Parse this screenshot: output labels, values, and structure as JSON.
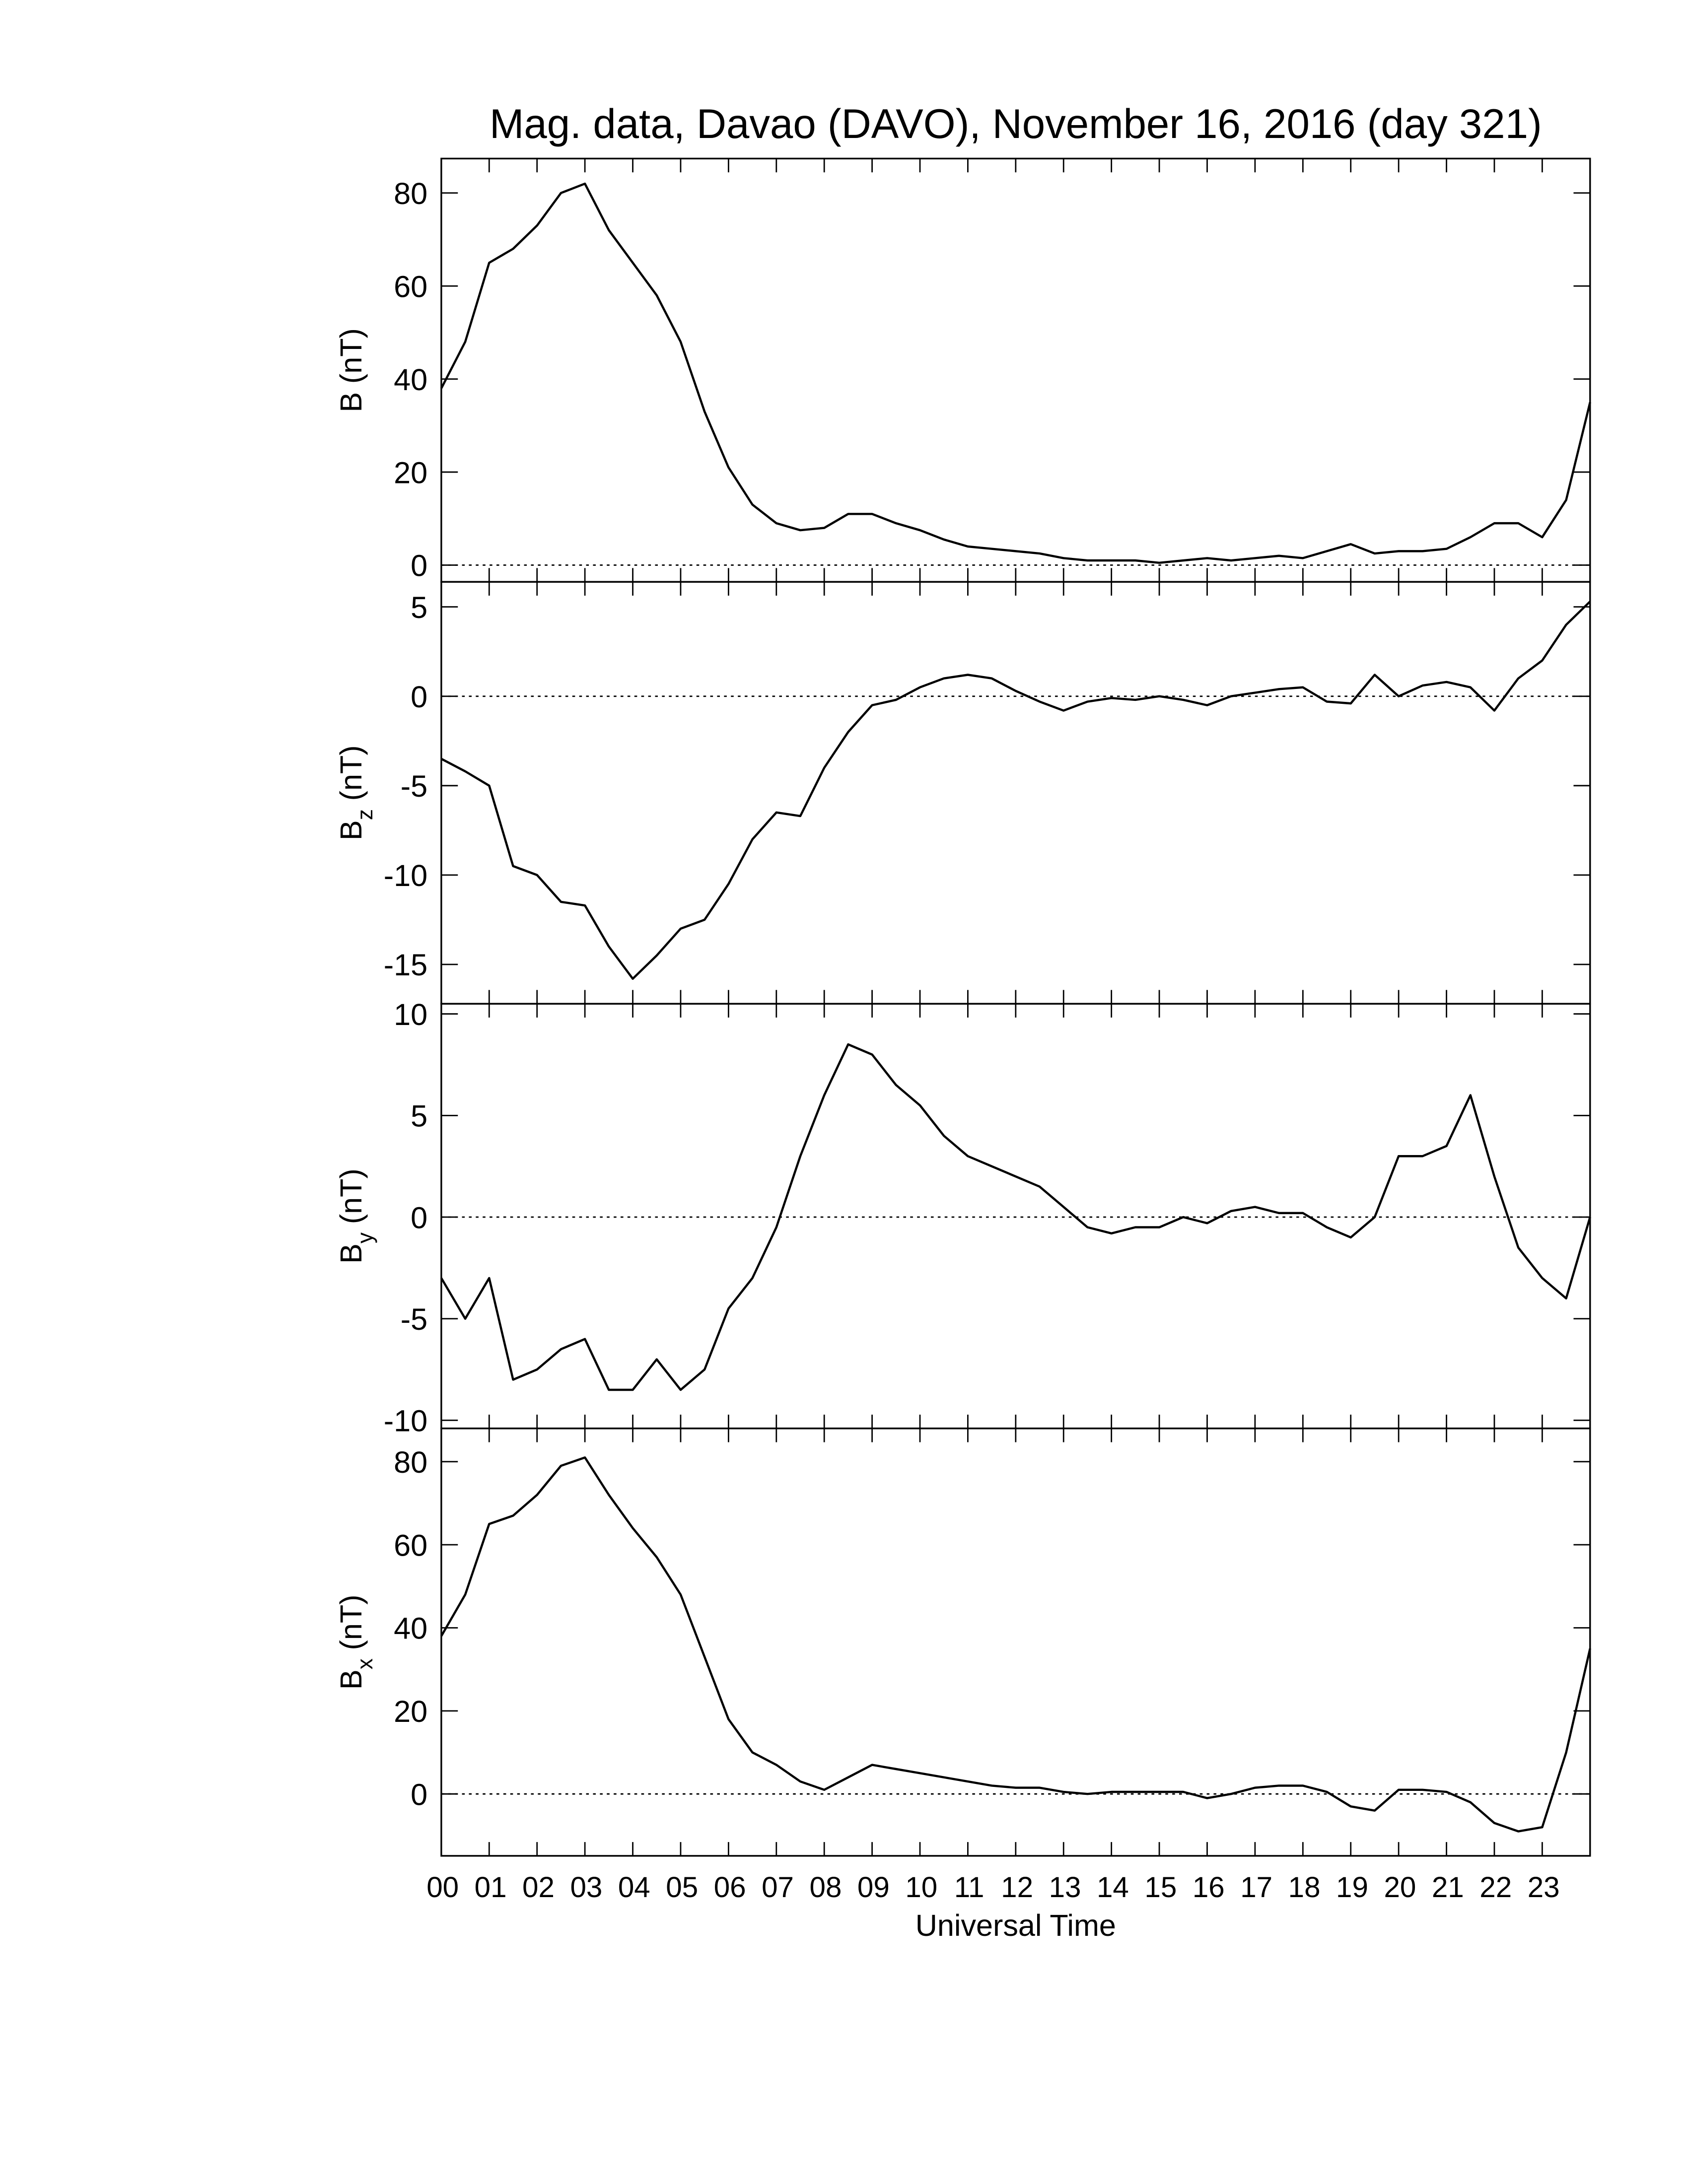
{
  "chart_data": [
    {
      "type": "line",
      "title": "Mag. data, Davao (DAVO), November 16, 2016 (day 321)",
      "ylabel": "B",
      "ylabel_unit": "(nT)",
      "x": [
        0,
        0.5,
        1,
        1.5,
        2,
        2.5,
        3,
        3.5,
        4,
        4.5,
        5,
        5.5,
        6,
        6.5,
        7,
        7.5,
        8,
        8.5,
        9,
        9.5,
        10,
        10.5,
        11,
        11.5,
        12,
        12.5,
        13,
        13.5,
        14,
        14.5,
        15,
        15.5,
        16,
        16.5,
        17,
        17.5,
        18,
        18.5,
        19,
        19.5,
        20,
        20.5,
        21,
        21.5,
        22,
        22.5,
        23,
        23.5,
        24
      ],
      "series": [
        {
          "color": "#000000",
          "values": [
            38,
            48,
            65,
            68,
            73,
            80,
            82,
            72,
            65,
            58,
            48,
            33,
            21,
            13,
            9,
            7.5,
            8,
            11,
            11,
            9,
            7.5,
            5.5,
            4,
            3.5,
            3,
            2.5,
            1.5,
            1,
            1,
            1,
            0.5,
            1,
            1.5,
            1,
            1.5,
            2,
            1.5,
            3,
            4.5,
            2.5,
            3,
            3,
            3.5,
            6,
            9,
            9,
            6,
            14,
            35
          ]
        }
      ],
      "xlim": [
        0,
        24
      ],
      "xticks": [
        0,
        1,
        2,
        3,
        4,
        5,
        6,
        7,
        8,
        9,
        10,
        11,
        12,
        13,
        14,
        15,
        16,
        17,
        18,
        19,
        20,
        21,
        22,
        23
      ],
      "ylim": [
        -3.6,
        87.4
      ],
      "yticks": [
        0,
        20,
        40,
        60,
        80
      ],
      "zero_line": true
    },
    {
      "type": "line",
      "ylabel": "B",
      "ylabel_sub": "z",
      "ylabel_unit": "(nT)",
      "x": [
        0,
        0.5,
        1,
        1.5,
        2,
        2.5,
        3,
        3.5,
        4,
        4.5,
        5,
        5.5,
        6,
        6.5,
        7,
        7.5,
        8,
        8.5,
        9,
        9.5,
        10,
        10.5,
        11,
        11.5,
        12,
        12.5,
        13,
        13.5,
        14,
        14.5,
        15,
        15.5,
        16,
        16.5,
        17,
        17.5,
        18,
        18.5,
        19,
        19.5,
        20,
        20.5,
        21,
        21.5,
        22,
        22.5,
        23,
        23.5,
        24
      ],
      "series": [
        {
          "color": "#000000",
          "values": [
            -3.5,
            -4.2,
            -5,
            -9.5,
            -10,
            -11.5,
            -11.7,
            -14,
            -15.8,
            -14.5,
            -13,
            -12.5,
            -10.5,
            -8,
            -6.5,
            -6.7,
            -4,
            -2,
            -0.5,
            -0.2,
            0.5,
            1,
            1.2,
            1,
            0.3,
            -0.3,
            -0.8,
            -0.3,
            -0.1,
            -0.2,
            0,
            -0.2,
            -0.5,
            0,
            0.2,
            0.4,
            0.5,
            -0.3,
            -0.4,
            1.2,
            0,
            0.6,
            0.8,
            0.5,
            -0.8,
            1,
            2,
            4,
            5.3
          ]
        }
      ],
      "xlim": [
        0,
        24
      ],
      "xticks": [
        0,
        1,
        2,
        3,
        4,
        5,
        6,
        7,
        8,
        9,
        10,
        11,
        12,
        13,
        14,
        15,
        16,
        17,
        18,
        19,
        20,
        21,
        22,
        23
      ],
      "ylim": [
        -17.2,
        6.4
      ],
      "yticks": [
        -15,
        -10,
        -5,
        0,
        5
      ],
      "zero_line": true
    },
    {
      "type": "line",
      "ylabel": "B",
      "ylabel_sub": "y",
      "ylabel_unit": "(nT)",
      "x": [
        0,
        0.5,
        1,
        1.5,
        2,
        2.5,
        3,
        3.5,
        4,
        4.5,
        5,
        5.5,
        6,
        6.5,
        7,
        7.5,
        8,
        8.5,
        9,
        9.5,
        10,
        10.5,
        11,
        11.5,
        12,
        12.5,
        13,
        13.5,
        14,
        14.5,
        15,
        15.5,
        16,
        16.5,
        17,
        17.5,
        18,
        18.5,
        19,
        19.5,
        20,
        20.5,
        21,
        21.5,
        22,
        22.5,
        23,
        23.5,
        24
      ],
      "series": [
        {
          "color": "#000000",
          "values": [
            -3,
            -5,
            -3,
            -8,
            -7.5,
            -6.5,
            -6,
            -8.5,
            -8.5,
            -7,
            -8.5,
            -7.5,
            -4.5,
            -3,
            -0.5,
            3,
            6,
            8.5,
            8,
            6.5,
            5.5,
            4,
            3,
            2.5,
            2,
            1.5,
            0.5,
            -0.5,
            -0.8,
            -0.5,
            -0.5,
            0,
            -0.3,
            0.3,
            0.5,
            0.2,
            0.2,
            -0.5,
            -1,
            0,
            3,
            3,
            3.5,
            6,
            2,
            -1.5,
            -3,
            -4,
            0
          ]
        }
      ],
      "xlim": [
        0,
        24
      ],
      "xticks": [
        0,
        1,
        2,
        3,
        4,
        5,
        6,
        7,
        8,
        9,
        10,
        11,
        12,
        13,
        14,
        15,
        16,
        17,
        18,
        19,
        20,
        21,
        22,
        23
      ],
      "ylim": [
        -10.4,
        10.5
      ],
      "yticks": [
        -10,
        -5,
        0,
        5,
        10
      ],
      "zero_line": true
    },
    {
      "type": "line",
      "ylabel": "B",
      "ylabel_sub": "x",
      "ylabel_unit": "(nT)",
      "xlabel": "Universal Time",
      "x": [
        0,
        0.5,
        1,
        1.5,
        2,
        2.5,
        3,
        3.5,
        4,
        4.5,
        5,
        5.5,
        6,
        6.5,
        7,
        7.5,
        8,
        8.5,
        9,
        9.5,
        10,
        10.5,
        11,
        11.5,
        12,
        12.5,
        13,
        13.5,
        14,
        14.5,
        15,
        15.5,
        16,
        16.5,
        17,
        17.5,
        18,
        18.5,
        19,
        19.5,
        20,
        20.5,
        21,
        21.5,
        22,
        22.5,
        23,
        23.5,
        24
      ],
      "series": [
        {
          "color": "#000000",
          "values": [
            38,
            48,
            65,
            67,
            72,
            79,
            81,
            72,
            64,
            57,
            48,
            33,
            18,
            10,
            7,
            3,
            1,
            4,
            7,
            6,
            5,
            4,
            3,
            2,
            1.5,
            1.5,
            0.5,
            0,
            0.5,
            0.5,
            0.5,
            0.5,
            -1,
            0,
            1.5,
            2,
            2,
            0.5,
            -3,
            -4,
            1,
            1,
            0.5,
            -2,
            -7,
            -9,
            -8,
            10,
            35
          ]
        }
      ],
      "xlim": [
        0,
        24
      ],
      "xticks": [
        {
          "value": 0,
          "label": "00"
        },
        {
          "value": 1,
          "label": "01"
        },
        {
          "value": 2,
          "label": "02"
        },
        {
          "value": 3,
          "label": "03"
        },
        {
          "value": 4,
          "label": "04"
        },
        {
          "value": 5,
          "label": "05"
        },
        {
          "value": 6,
          "label": "06"
        },
        {
          "value": 7,
          "label": "07"
        },
        {
          "value": 8,
          "label": "08"
        },
        {
          "value": 9,
          "label": "09"
        },
        {
          "value": 10,
          "label": "10"
        },
        {
          "value": 11,
          "label": "11"
        },
        {
          "value": 12,
          "label": "12"
        },
        {
          "value": 13,
          "label": "13"
        },
        {
          "value": 14,
          "label": "14"
        },
        {
          "value": 15,
          "label": "15"
        },
        {
          "value": 16,
          "label": "16"
        },
        {
          "value": 17,
          "label": "17"
        },
        {
          "value": 18,
          "label": "18"
        },
        {
          "value": 19,
          "label": "19"
        },
        {
          "value": 20,
          "label": "20"
        },
        {
          "value": 21,
          "label": "21"
        },
        {
          "value": 22,
          "label": "22"
        },
        {
          "value": 23,
          "label": "23"
        }
      ],
      "ylim": [
        -14.9,
        88
      ],
      "yticks": [
        0,
        20,
        40,
        60,
        80
      ],
      "zero_line": true
    }
  ]
}
